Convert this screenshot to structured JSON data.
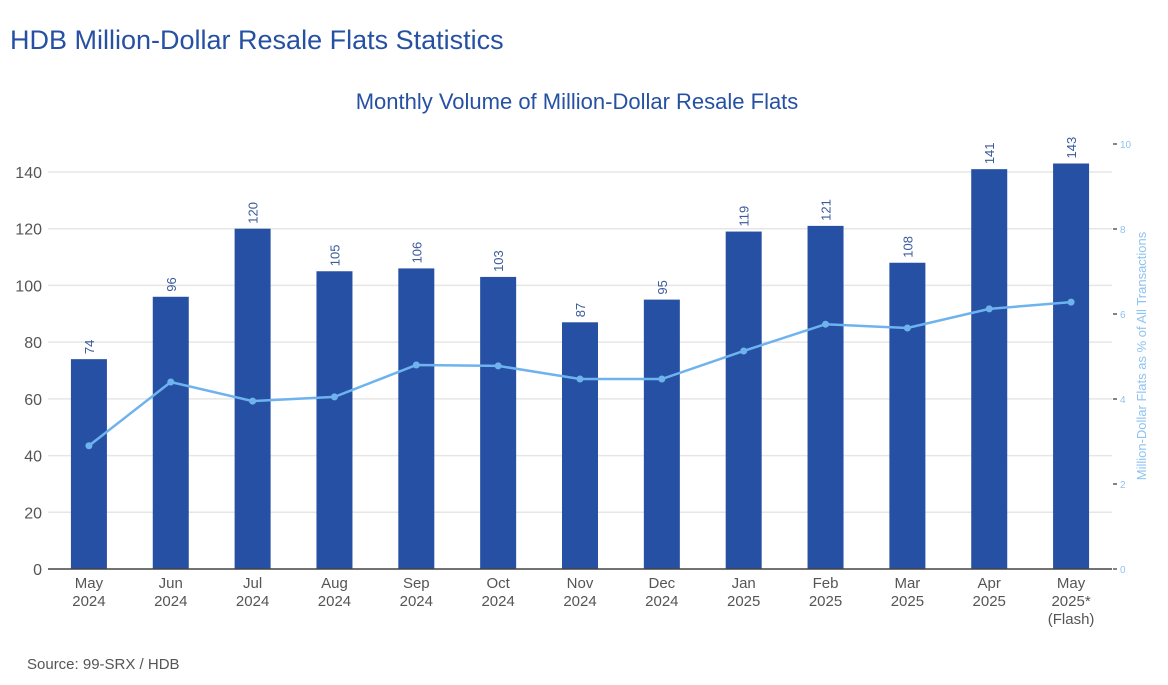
{
  "page_title": "HDB Million-Dollar Resale Flats Statistics",
  "source": "Source: 99-SRX / HDB",
  "colors": {
    "bar": "#2650a3",
    "line": "#6fb3ee",
    "title": "#2650a3",
    "right_axis": "#8fc3f0"
  },
  "chart_data": {
    "type": "bar",
    "title": "Monthly Volume of Million-Dollar Resale Flats",
    "categories": [
      [
        "May",
        "2024"
      ],
      [
        "Jun",
        "2024"
      ],
      [
        "Jul",
        "2024"
      ],
      [
        "Aug",
        "2024"
      ],
      [
        "Sep",
        "2024"
      ],
      [
        "Oct",
        "2024"
      ],
      [
        "Nov",
        "2024"
      ],
      [
        "Dec",
        "2024"
      ],
      [
        "Jan",
        "2025"
      ],
      [
        "Feb",
        "2025"
      ],
      [
        "Mar",
        "2025"
      ],
      [
        "Apr",
        "2025"
      ],
      [
        "May",
        "2025*",
        "(Flash)"
      ]
    ],
    "series": [
      {
        "type": "bar",
        "axis": "left",
        "values": [
          74,
          96,
          120,
          105,
          106,
          103,
          87,
          95,
          119,
          121,
          108,
          141,
          143
        ]
      },
      {
        "type": "line",
        "axis": "right",
        "values": [
          2.9,
          4.4,
          3.95,
          4.05,
          4.8,
          4.78,
          4.47,
          4.47,
          5.13,
          5.76,
          5.67,
          6.12,
          6.28
        ]
      }
    ],
    "ylim": [
      0,
      140
    ],
    "yticks": [
      0,
      20,
      40,
      60,
      80,
      100,
      120,
      140
    ],
    "y2lim": [
      0,
      10
    ],
    "y2ticks": [
      0,
      2,
      4,
      6,
      8,
      10
    ],
    "y2label": "Million-Dollar Flats as % of All Transactions",
    "grid": true
  }
}
